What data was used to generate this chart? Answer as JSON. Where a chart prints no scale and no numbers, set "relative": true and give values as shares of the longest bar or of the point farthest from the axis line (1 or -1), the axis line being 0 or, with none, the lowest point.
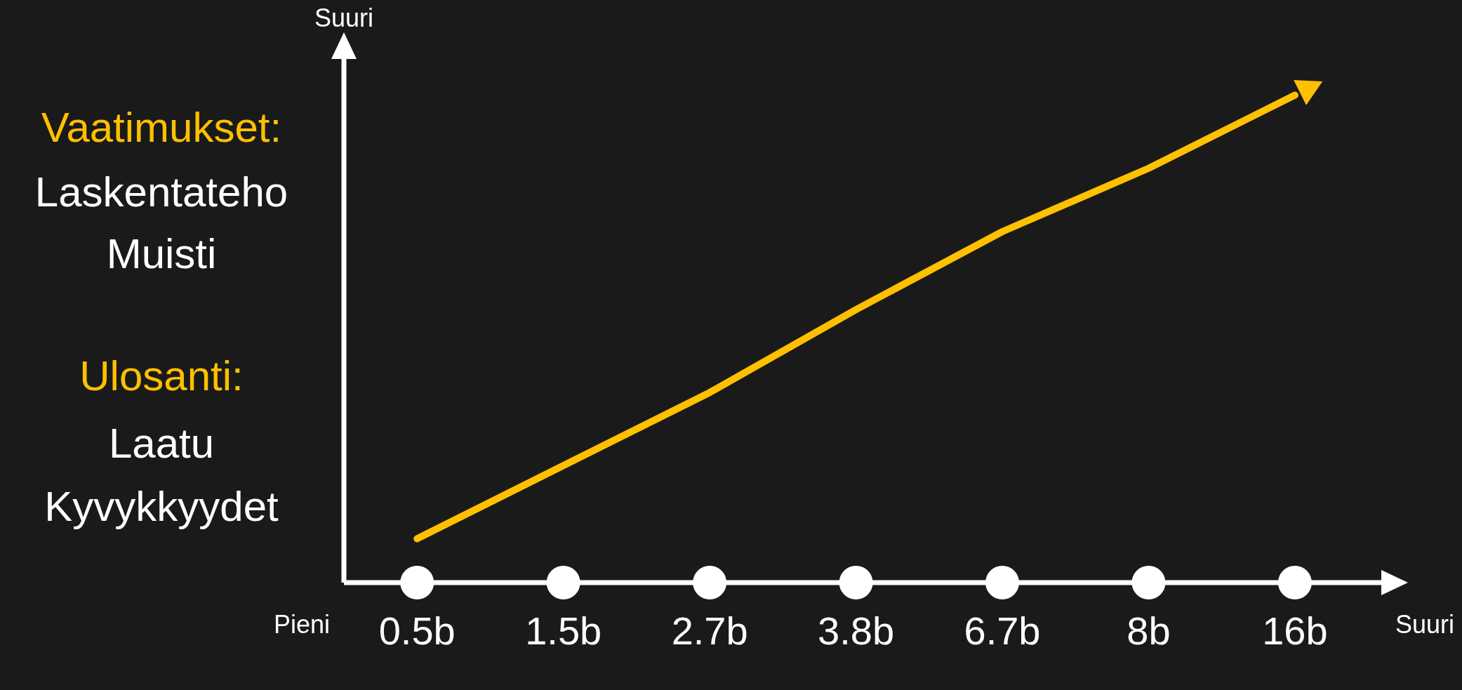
{
  "chart_data": {
    "type": "line",
    "relative": true,
    "categories": [
      "0.5b",
      "1.5b",
      "2.7b",
      "3.8b",
      "6.7b",
      "8b",
      "16b"
    ],
    "series": [
      {
        "color": "#ffc000",
        "values": [
          0.09,
          0.24,
          0.39,
          0.56,
          0.72,
          0.85,
          1
        ]
      },
      {
        "type": "scatter",
        "color": "#ffffff",
        "values": [
          0,
          0,
          0,
          0,
          0,
          0,
          0
        ]
      }
    ],
    "annotations": [
      "Suuri",
      "Pieni",
      "Suuri",
      "Vaatimukset:",
      "Laskentateho",
      "Muisti",
      "Ulosanti:",
      "Laatu",
      "Kyvykkyydet"
    ]
  }
}
